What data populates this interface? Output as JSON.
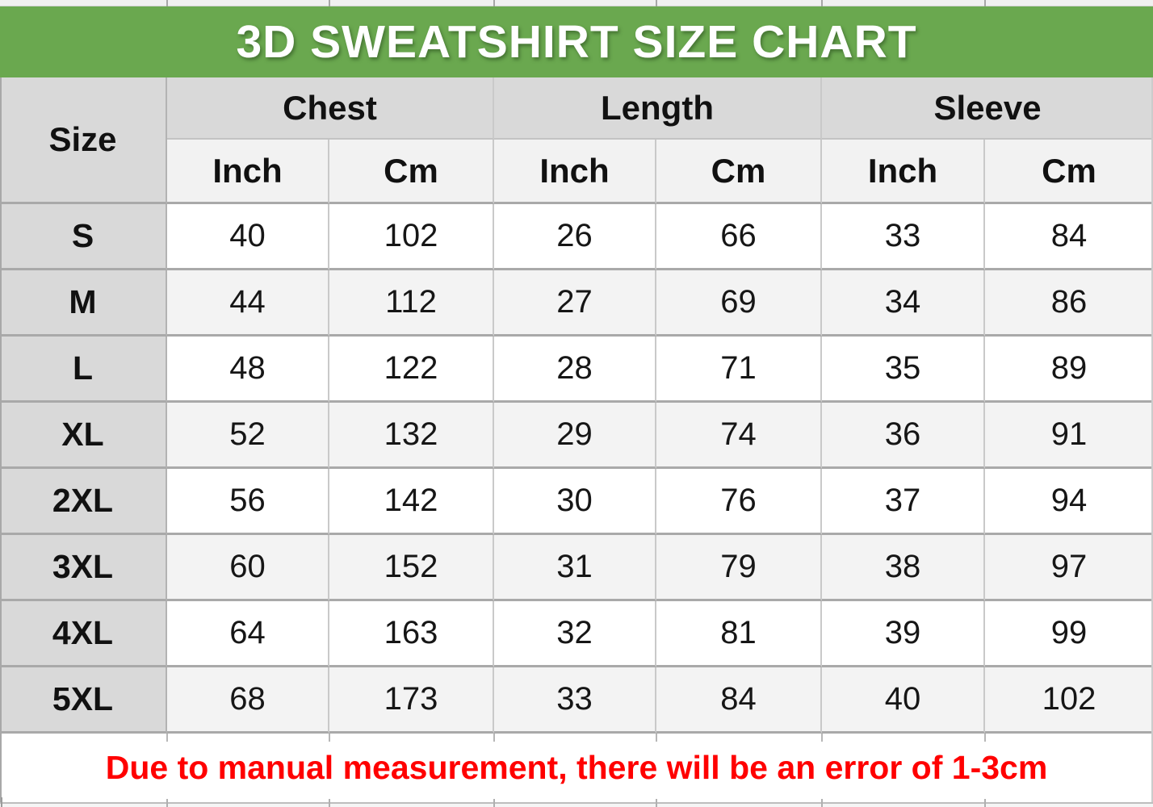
{
  "title": "3D SWEATSHIRT SIZE CHART",
  "colors": {
    "banner_green": "#6aa84f",
    "header_band_gray": "#d9d9d9",
    "subheader_gray": "#f2f2f2",
    "stripe_gray": "#f3f3f3",
    "row_white": "#ffffff",
    "note_red": "#ff0000"
  },
  "table": {
    "size_header": "Size",
    "groups": [
      {
        "label": "Chest"
      },
      {
        "label": "Length"
      },
      {
        "label": "Sleeve"
      }
    ],
    "unit_headers": [
      "Inch",
      "Cm",
      "Inch",
      "Cm",
      "Inch",
      "Cm"
    ],
    "rows": [
      {
        "size": "S",
        "values": [
          "40",
          "102",
          "26",
          "66",
          "33",
          "84"
        ]
      },
      {
        "size": "M",
        "values": [
          "44",
          "112",
          "27",
          "69",
          "34",
          "86"
        ]
      },
      {
        "size": "L",
        "values": [
          "48",
          "122",
          "28",
          "71",
          "35",
          "89"
        ]
      },
      {
        "size": "XL",
        "values": [
          "52",
          "132",
          "29",
          "74",
          "36",
          "91"
        ]
      },
      {
        "size": "2XL",
        "values": [
          "56",
          "142",
          "30",
          "76",
          "37",
          "94"
        ]
      },
      {
        "size": "3XL",
        "values": [
          "60",
          "152",
          "31",
          "79",
          "38",
          "97"
        ]
      },
      {
        "size": "4XL",
        "values": [
          "64",
          "163",
          "32",
          "81",
          "39",
          "99"
        ]
      },
      {
        "size": "5XL",
        "values": [
          "68",
          "173",
          "33",
          "84",
          "40",
          "102"
        ]
      }
    ]
  },
  "footer_note": "Due to manual measurement, there will be an error of 1-3cm"
}
